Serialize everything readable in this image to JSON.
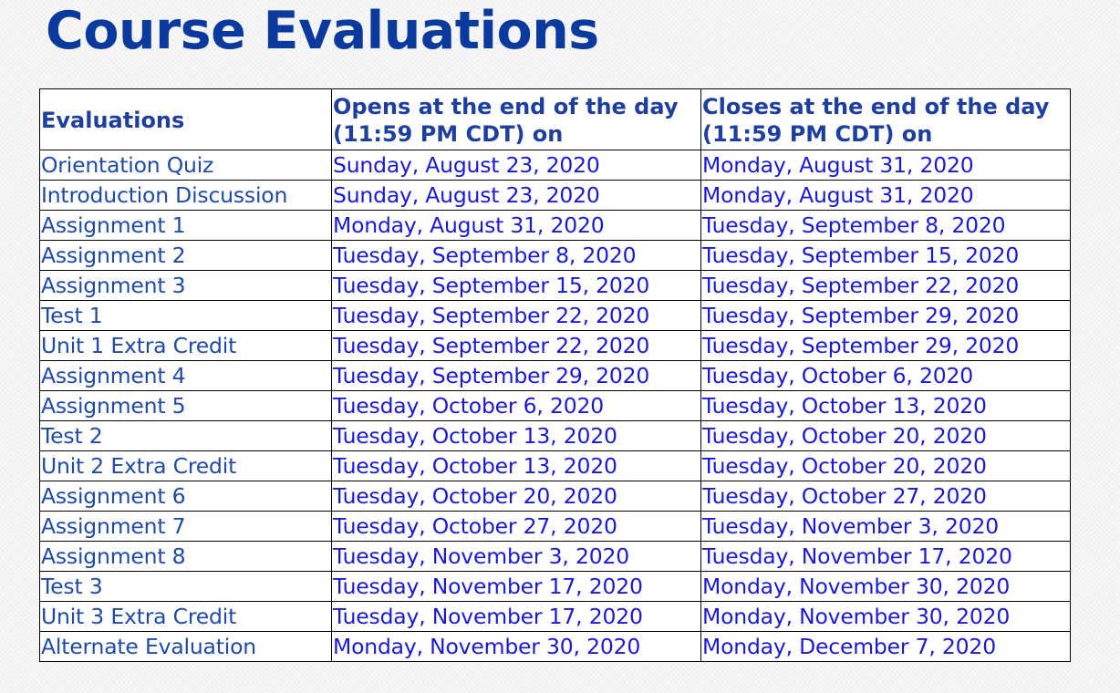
{
  "title": "Course Evaluations",
  "table": {
    "headers": [
      "Evaluations",
      "Opens at the end of the day (11:59 PM CDT) on",
      "Closes at the end of the day (11:59 PM CDT) on"
    ],
    "rows": [
      [
        "Orientation Quiz",
        "Sunday, August 23, 2020",
        "Monday, August 31, 2020"
      ],
      [
        "Introduction Discussion",
        "Sunday, August 23, 2020",
        "Monday, August 31, 2020"
      ],
      [
        "Assignment 1",
        "Monday, August 31, 2020",
        "Tuesday, September 8, 2020"
      ],
      [
        "Assignment 2",
        "Tuesday, September 8, 2020",
        "Tuesday, September 15, 2020"
      ],
      [
        "Assignment 3",
        "Tuesday, September 15, 2020",
        "Tuesday, September 22, 2020"
      ],
      [
        "Test 1",
        "Tuesday, September 22, 2020",
        "Tuesday, September 29, 2020"
      ],
      [
        "Unit 1 Extra Credit",
        "Tuesday, September 22, 2020",
        "Tuesday, September 29, 2020"
      ],
      [
        "Assignment 4",
        "Tuesday, September 29, 2020",
        "Tuesday, October 6, 2020"
      ],
      [
        "Assignment 5",
        "Tuesday, October 6, 2020",
        "Tuesday, October 13, 2020"
      ],
      [
        "Test 2",
        "Tuesday, October 13, 2020",
        "Tuesday, October 20, 2020"
      ],
      [
        "Unit 2 Extra Credit",
        "Tuesday, October 13, 2020",
        "Tuesday, October 20, 2020"
      ],
      [
        "Assignment 6",
        "Tuesday, October 20, 2020",
        "Tuesday, October 27, 2020"
      ],
      [
        "Assignment 7",
        "Tuesday, October 27, 2020",
        "Tuesday, November 3, 2020"
      ],
      [
        "Assignment 8",
        "Tuesday, November 3, 2020",
        "Tuesday, November 17, 2020"
      ],
      [
        "Test 3",
        "Tuesday, November 17, 2020",
        "Monday, November 30, 2020"
      ],
      [
        "Unit 3 Extra Credit",
        "Tuesday, November 17, 2020",
        "Monday, November 30, 2020"
      ],
      [
        "Alternate Evaluation",
        "Monday, November 30, 2020",
        "Monday, December 7, 2020"
      ]
    ]
  },
  "colors": {
    "title": "#0a3a9e",
    "header_text": "#1f3f9f",
    "evaluation_text": "#1f4aa8",
    "date_text": "#1a1ad6",
    "grid": "#000000"
  }
}
